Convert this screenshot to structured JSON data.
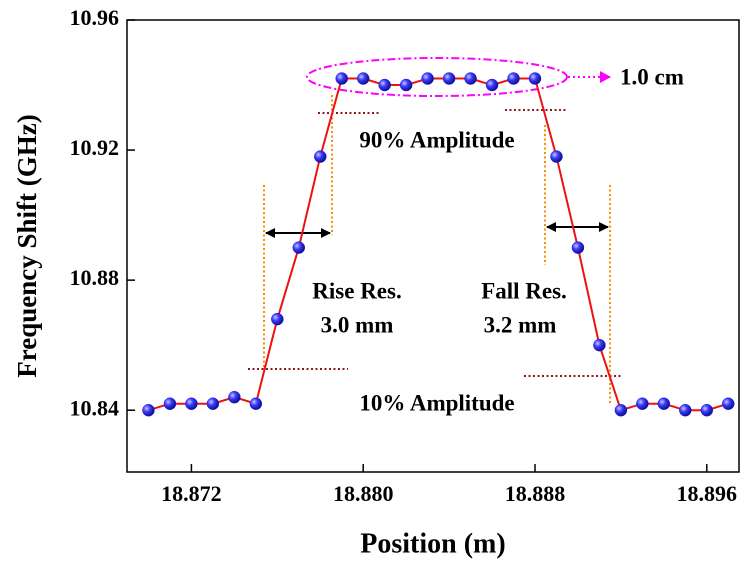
{
  "chart_data": {
    "type": "line",
    "x_label": "Position (m)",
    "y_label": "Frequency Shift (GHz)",
    "x": [
      18.87,
      18.871,
      18.872,
      18.873,
      18.874,
      18.875,
      18.876,
      18.877,
      18.878,
      18.879,
      18.88,
      18.881,
      18.882,
      18.883,
      18.884,
      18.885,
      18.886,
      18.887,
      18.888,
      18.889,
      18.89,
      18.891,
      18.892,
      18.893,
      18.894,
      18.895,
      18.896,
      18.897
    ],
    "series": [
      {
        "color": "#ee1111",
        "marker_color": "#1a1aee",
        "values": [
          10.84,
          10.842,
          10.842,
          10.842,
          10.844,
          10.842,
          10.868,
          10.89,
          10.918,
          10.942,
          10.942,
          10.94,
          10.94,
          10.942,
          10.942,
          10.942,
          10.94,
          10.942,
          10.942,
          10.918,
          10.89,
          10.86,
          10.84,
          10.842,
          10.842,
          10.84,
          10.84,
          10.842
        ]
      }
    ],
    "xlim": [
      18.869,
      18.8975
    ],
    "ylim": [
      10.821,
      10.96
    ],
    "xticks": [
      18.872,
      {
        "value": 18.88,
        "label": "18.880"
      },
      18.888,
      18.896
    ],
    "yticks": [
      10.84,
      10.88,
      10.92,
      10.96
    ],
    "annotations": [
      "1.0 cm",
      "90% Amplitude",
      "Rise Res.",
      "3.0 mm",
      "Fall Res.",
      "3.2 mm",
      "10% Amplitude"
    ]
  }
}
